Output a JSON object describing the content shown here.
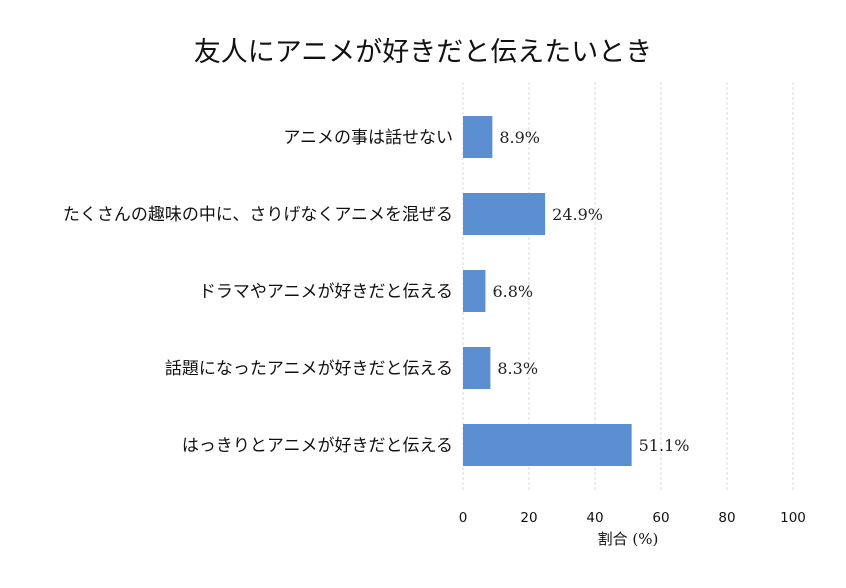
{
  "chart_data": {
    "type": "bar",
    "orientation": "horizontal",
    "title": "友人にアニメが好きだと伝えたいとき",
    "xlabel": "割合 (%)",
    "ylabel": "",
    "xlim": [
      0,
      100
    ],
    "xticks": [
      0,
      20,
      40,
      60,
      80,
      100
    ],
    "grid": "vertical-dashed",
    "bar_color": "#5b8fd1",
    "categories": [
      "アニメの事は話せない",
      "たくさんの趣味の中に、さりげなくアニメを混ぜる",
      "ドラマやアニメが好きだと伝える",
      "話題になったアニメが好きだと伝える",
      "はっきりとアニメが好きだと伝える"
    ],
    "values": [
      8.9,
      24.9,
      6.8,
      8.3,
      51.1
    ],
    "value_labels": [
      "8.9%",
      "24.9%",
      "6.8%",
      "8.3%",
      "51.1%"
    ]
  }
}
